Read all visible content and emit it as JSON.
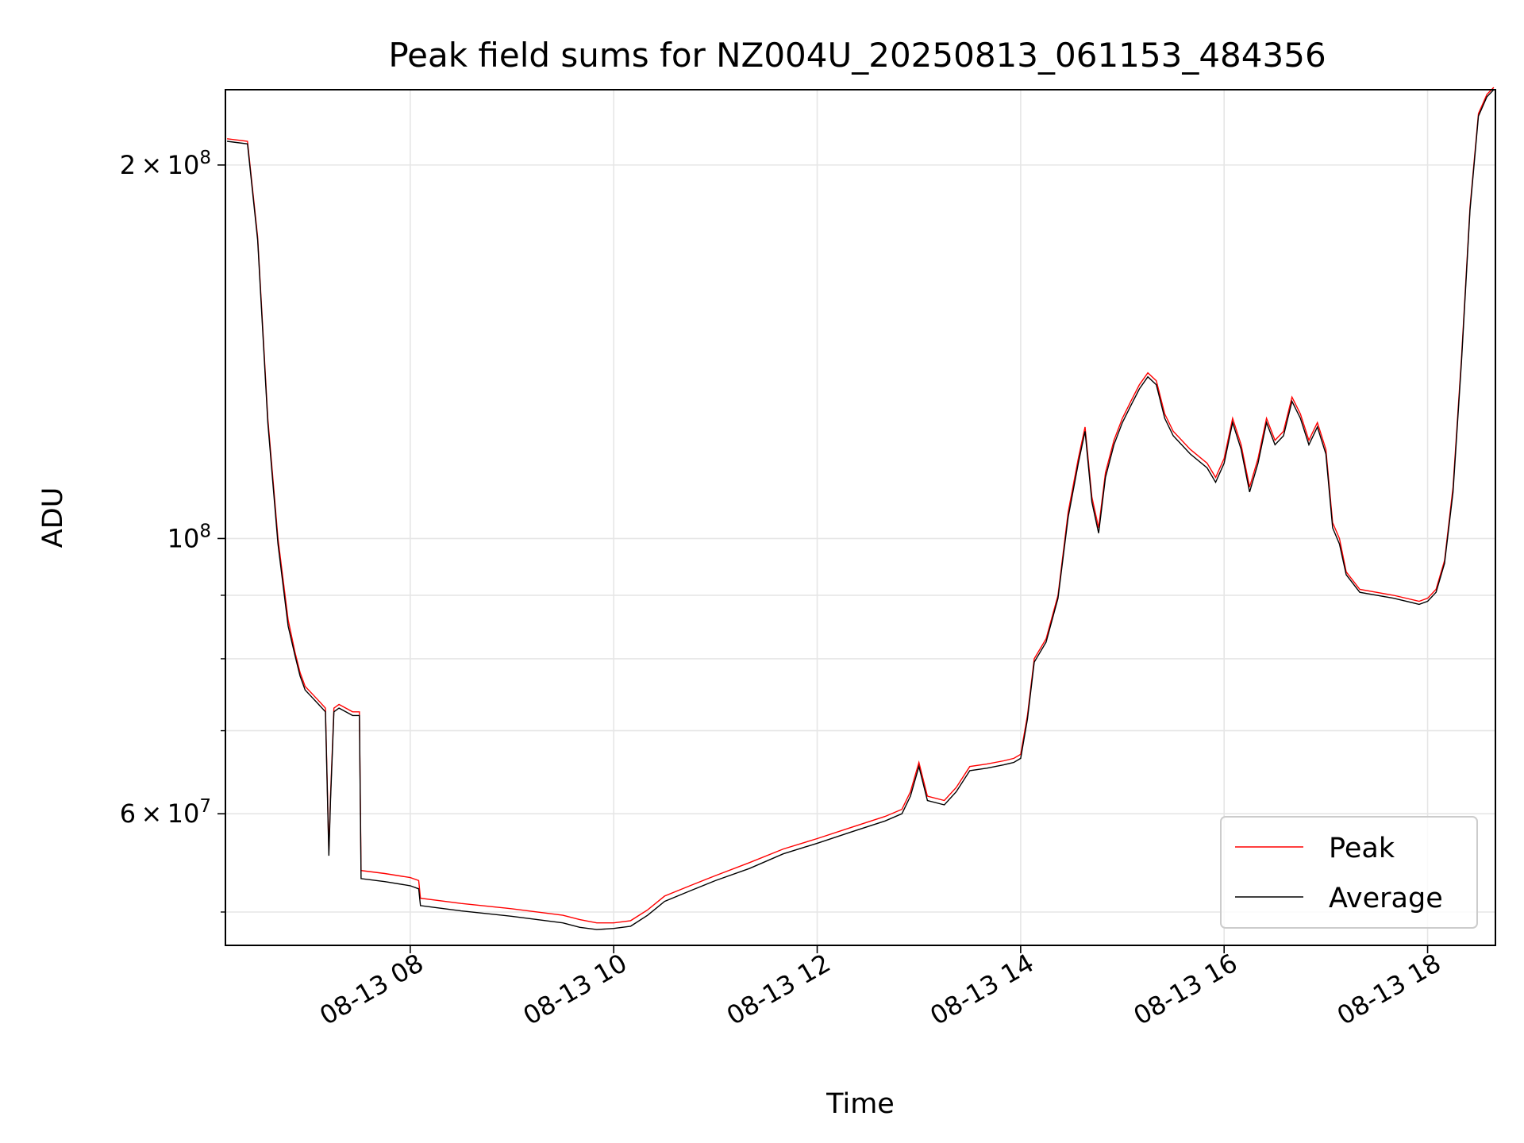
{
  "chart_data": {
    "type": "line",
    "title": "Peak field sums for NZ004U_20250813_061153_484356",
    "xlabel": "Time",
    "ylabel": "ADU",
    "yscale": "log",
    "ylim": [
      47000000,
      230000000
    ],
    "xlim": [
      "2025-08-13 06:11",
      "2025-08-13 18:40"
    ],
    "grid": true,
    "legend_position": "lower right",
    "x_ticks": [
      {
        "value": "2025-08-13 08:00",
        "label": "08-13 08"
      },
      {
        "value": "2025-08-13 10:00",
        "label": "08-13 10"
      },
      {
        "value": "2025-08-13 12:00",
        "label": "08-13 12"
      },
      {
        "value": "2025-08-13 14:00",
        "label": "08-13 14"
      },
      {
        "value": "2025-08-13 16:00",
        "label": "08-13 16"
      },
      {
        "value": "2025-08-13 18:00",
        "label": "08-13 18"
      }
    ],
    "y_ticks": [
      {
        "value": 200000000,
        "mantissa": "2",
        "exponent": "8"
      },
      {
        "value": 100000000,
        "mantissa": "",
        "exponent": "8"
      },
      {
        "value": 60000000,
        "mantissa": "6",
        "exponent": "7"
      }
    ],
    "y_minor_ticks": [
      50000000,
      70000000,
      80000000,
      90000000
    ],
    "series": [
      {
        "name": "Peak",
        "color": "#ff0000",
        "x": [
          "2025-08-13 06:12",
          "2025-08-13 06:24",
          "2025-08-13 06:30",
          "2025-08-13 06:36",
          "2025-08-13 06:42",
          "2025-08-13 06:48",
          "2025-08-13 06:52",
          "2025-08-13 06:55",
          "2025-08-13 06:58",
          "2025-08-13 07:02",
          "2025-08-13 07:06",
          "2025-08-13 07:10",
          "2025-08-13 07:12",
          "2025-08-13 07:13",
          "2025-08-13 07:15",
          "2025-08-13 07:18",
          "2025-08-13 07:22",
          "2025-08-13 07:26",
          "2025-08-13 07:30",
          "2025-08-13 07:31",
          "2025-08-13 07:45",
          "2025-08-13 08:00",
          "2025-08-13 08:05",
          "2025-08-13 08:06",
          "2025-08-13 08:30",
          "2025-08-13 09:00",
          "2025-08-13 09:30",
          "2025-08-13 09:40",
          "2025-08-13 09:50",
          "2025-08-13 10:00",
          "2025-08-13 10:10",
          "2025-08-13 10:20",
          "2025-08-13 10:30",
          "2025-08-13 10:45",
          "2025-08-13 11:00",
          "2025-08-13 11:20",
          "2025-08-13 11:40",
          "2025-08-13 12:00",
          "2025-08-13 12:20",
          "2025-08-13 12:40",
          "2025-08-13 12:50",
          "2025-08-13 12:55",
          "2025-08-13 13:00",
          "2025-08-13 13:05",
          "2025-08-13 13:15",
          "2025-08-13 13:22",
          "2025-08-13 13:30",
          "2025-08-13 13:40",
          "2025-08-13 13:50",
          "2025-08-13 13:56",
          "2025-08-13 14:00",
          "2025-08-13 14:04",
          "2025-08-13 14:08",
          "2025-08-13 14:15",
          "2025-08-13 14:22",
          "2025-08-13 14:28",
          "2025-08-13 14:34",
          "2025-08-13 14:38",
          "2025-08-13 14:42",
          "2025-08-13 14:46",
          "2025-08-13 14:50",
          "2025-08-13 14:55",
          "2025-08-13 15:00",
          "2025-08-13 15:05",
          "2025-08-13 15:10",
          "2025-08-13 15:15",
          "2025-08-13 15:20",
          "2025-08-13 15:25",
          "2025-08-13 15:30",
          "2025-08-13 15:40",
          "2025-08-13 15:50",
          "2025-08-13 15:55",
          "2025-08-13 16:00",
          "2025-08-13 16:05",
          "2025-08-13 16:10",
          "2025-08-13 16:15",
          "2025-08-13 16:20",
          "2025-08-13 16:25",
          "2025-08-13 16:30",
          "2025-08-13 16:35",
          "2025-08-13 16:40",
          "2025-08-13 16:45",
          "2025-08-13 16:50",
          "2025-08-13 16:55",
          "2025-08-13 17:00",
          "2025-08-13 17:04",
          "2025-08-13 17:08",
          "2025-08-13 17:12",
          "2025-08-13 17:20",
          "2025-08-13 17:40",
          "2025-08-13 17:55",
          "2025-08-13 18:00",
          "2025-08-13 18:05",
          "2025-08-13 18:10",
          "2025-08-13 18:15",
          "2025-08-13 18:20",
          "2025-08-13 18:25",
          "2025-08-13 18:30",
          "2025-08-13 18:35",
          "2025-08-13 18:39"
        ],
        "y": [
          210000000,
          209000000,
          175000000,
          125000000,
          100000000,
          86000000,
          81000000,
          78000000,
          76000000,
          75000000,
          74000000,
          73000000,
          56000000,
          62000000,
          73000000,
          73500000,
          73000000,
          72500000,
          72500000,
          54000000,
          53700000,
          53300000,
          53000000,
          51300000,
          50800000,
          50300000,
          49700000,
          49300000,
          49000000,
          49000000,
          49200000,
          50200000,
          51500000,
          52500000,
          53500000,
          54800000,
          56200000,
          57300000,
          58500000,
          59700000,
          60500000,
          62500000,
          66000000,
          62000000,
          61500000,
          63000000,
          65500000,
          65800000,
          66200000,
          66500000,
          67000000,
          72000000,
          80000000,
          83000000,
          90000000,
          105000000,
          116000000,
          123000000,
          108000000,
          102000000,
          113000000,
          120000000,
          125000000,
          129000000,
          133000000,
          136000000,
          134000000,
          126000000,
          122000000,
          118000000,
          115000000,
          112000000,
          116000000,
          125000000,
          119000000,
          110000000,
          116000000,
          125000000,
          120000000,
          122000000,
          130000000,
          126000000,
          120000000,
          124000000,
          118000000,
          103000000,
          100000000,
          94000000,
          91000000,
          90000000,
          89000000,
          89500000,
          91000000,
          96000000,
          110000000,
          140000000,
          185000000,
          220000000,
          228000000,
          231000000
        ]
      },
      {
        "name": "Average",
        "color": "#000000",
        "x": [
          "2025-08-13 06:12",
          "2025-08-13 06:24",
          "2025-08-13 06:30",
          "2025-08-13 06:36",
          "2025-08-13 06:42",
          "2025-08-13 06:48",
          "2025-08-13 06:52",
          "2025-08-13 06:55",
          "2025-08-13 06:58",
          "2025-08-13 07:02",
          "2025-08-13 07:06",
          "2025-08-13 07:10",
          "2025-08-13 07:12",
          "2025-08-13 07:13",
          "2025-08-13 07:15",
          "2025-08-13 07:18",
          "2025-08-13 07:22",
          "2025-08-13 07:26",
          "2025-08-13 07:30",
          "2025-08-13 07:31",
          "2025-08-13 07:45",
          "2025-08-13 08:00",
          "2025-08-13 08:05",
          "2025-08-13 08:06",
          "2025-08-13 08:30",
          "2025-08-13 09:00",
          "2025-08-13 09:30",
          "2025-08-13 09:40",
          "2025-08-13 09:50",
          "2025-08-13 10:00",
          "2025-08-13 10:10",
          "2025-08-13 10:20",
          "2025-08-13 10:30",
          "2025-08-13 10:45",
          "2025-08-13 11:00",
          "2025-08-13 11:20",
          "2025-08-13 11:40",
          "2025-08-13 12:00",
          "2025-08-13 12:20",
          "2025-08-13 12:40",
          "2025-08-13 12:50",
          "2025-08-13 12:55",
          "2025-08-13 13:00",
          "2025-08-13 13:05",
          "2025-08-13 13:15",
          "2025-08-13 13:22",
          "2025-08-13 13:30",
          "2025-08-13 13:40",
          "2025-08-13 13:50",
          "2025-08-13 13:56",
          "2025-08-13 14:00",
          "2025-08-13 14:04",
          "2025-08-13 14:08",
          "2025-08-13 14:15",
          "2025-08-13 14:22",
          "2025-08-13 14:28",
          "2025-08-13 14:34",
          "2025-08-13 14:38",
          "2025-08-13 14:42",
          "2025-08-13 14:46",
          "2025-08-13 14:50",
          "2025-08-13 14:55",
          "2025-08-13 15:00",
          "2025-08-13 15:05",
          "2025-08-13 15:10",
          "2025-08-13 15:15",
          "2025-08-13 15:20",
          "2025-08-13 15:25",
          "2025-08-13 15:30",
          "2025-08-13 15:40",
          "2025-08-13 15:50",
          "2025-08-13 15:55",
          "2025-08-13 16:00",
          "2025-08-13 16:05",
          "2025-08-13 16:10",
          "2025-08-13 16:15",
          "2025-08-13 16:20",
          "2025-08-13 16:25",
          "2025-08-13 16:30",
          "2025-08-13 16:35",
          "2025-08-13 16:40",
          "2025-08-13 16:45",
          "2025-08-13 16:50",
          "2025-08-13 16:55",
          "2025-08-13 17:00",
          "2025-08-13 17:04",
          "2025-08-13 17:08",
          "2025-08-13 17:12",
          "2025-08-13 17:20",
          "2025-08-13 17:40",
          "2025-08-13 17:55",
          "2025-08-13 18:00",
          "2025-08-13 18:05",
          "2025-08-13 18:10",
          "2025-08-13 18:15",
          "2025-08-13 18:20",
          "2025-08-13 18:25",
          "2025-08-13 18:30",
          "2025-08-13 18:35",
          "2025-08-13 18:39"
        ],
        "y": [
          209000000,
          208000000,
          174000000,
          124000000,
          99000000,
          85000000,
          80500000,
          77500000,
          75500000,
          74500000,
          73500000,
          72500000,
          55500000,
          61500000,
          72500000,
          73000000,
          72500000,
          72000000,
          72000000,
          53200000,
          52900000,
          52500000,
          52200000,
          50600000,
          50100000,
          49600000,
          49000000,
          48600000,
          48400000,
          48500000,
          48700000,
          49700000,
          51000000,
          52000000,
          53000000,
          54200000,
          55700000,
          56800000,
          58000000,
          59200000,
          60000000,
          62000000,
          65500000,
          61500000,
          61000000,
          62500000,
          65000000,
          65300000,
          65700000,
          66000000,
          66500000,
          71500000,
          79500000,
          82500000,
          89500000,
          104000000,
          115000000,
          122000000,
          107000000,
          101000000,
          112000000,
          119000000,
          124000000,
          128000000,
          132000000,
          135000000,
          133000000,
          125000000,
          121000000,
          117000000,
          114000000,
          111000000,
          115000000,
          124000000,
          118000000,
          109000000,
          115000000,
          124000000,
          119000000,
          121000000,
          129000000,
          125000000,
          119000000,
          123000000,
          117000000,
          102000000,
          99000000,
          93500000,
          90500000,
          89500000,
          88500000,
          89000000,
          90500000,
          95500000,
          109000000,
          139000000,
          184000000,
          219000000,
          227000000,
          230000000
        ]
      }
    ]
  }
}
